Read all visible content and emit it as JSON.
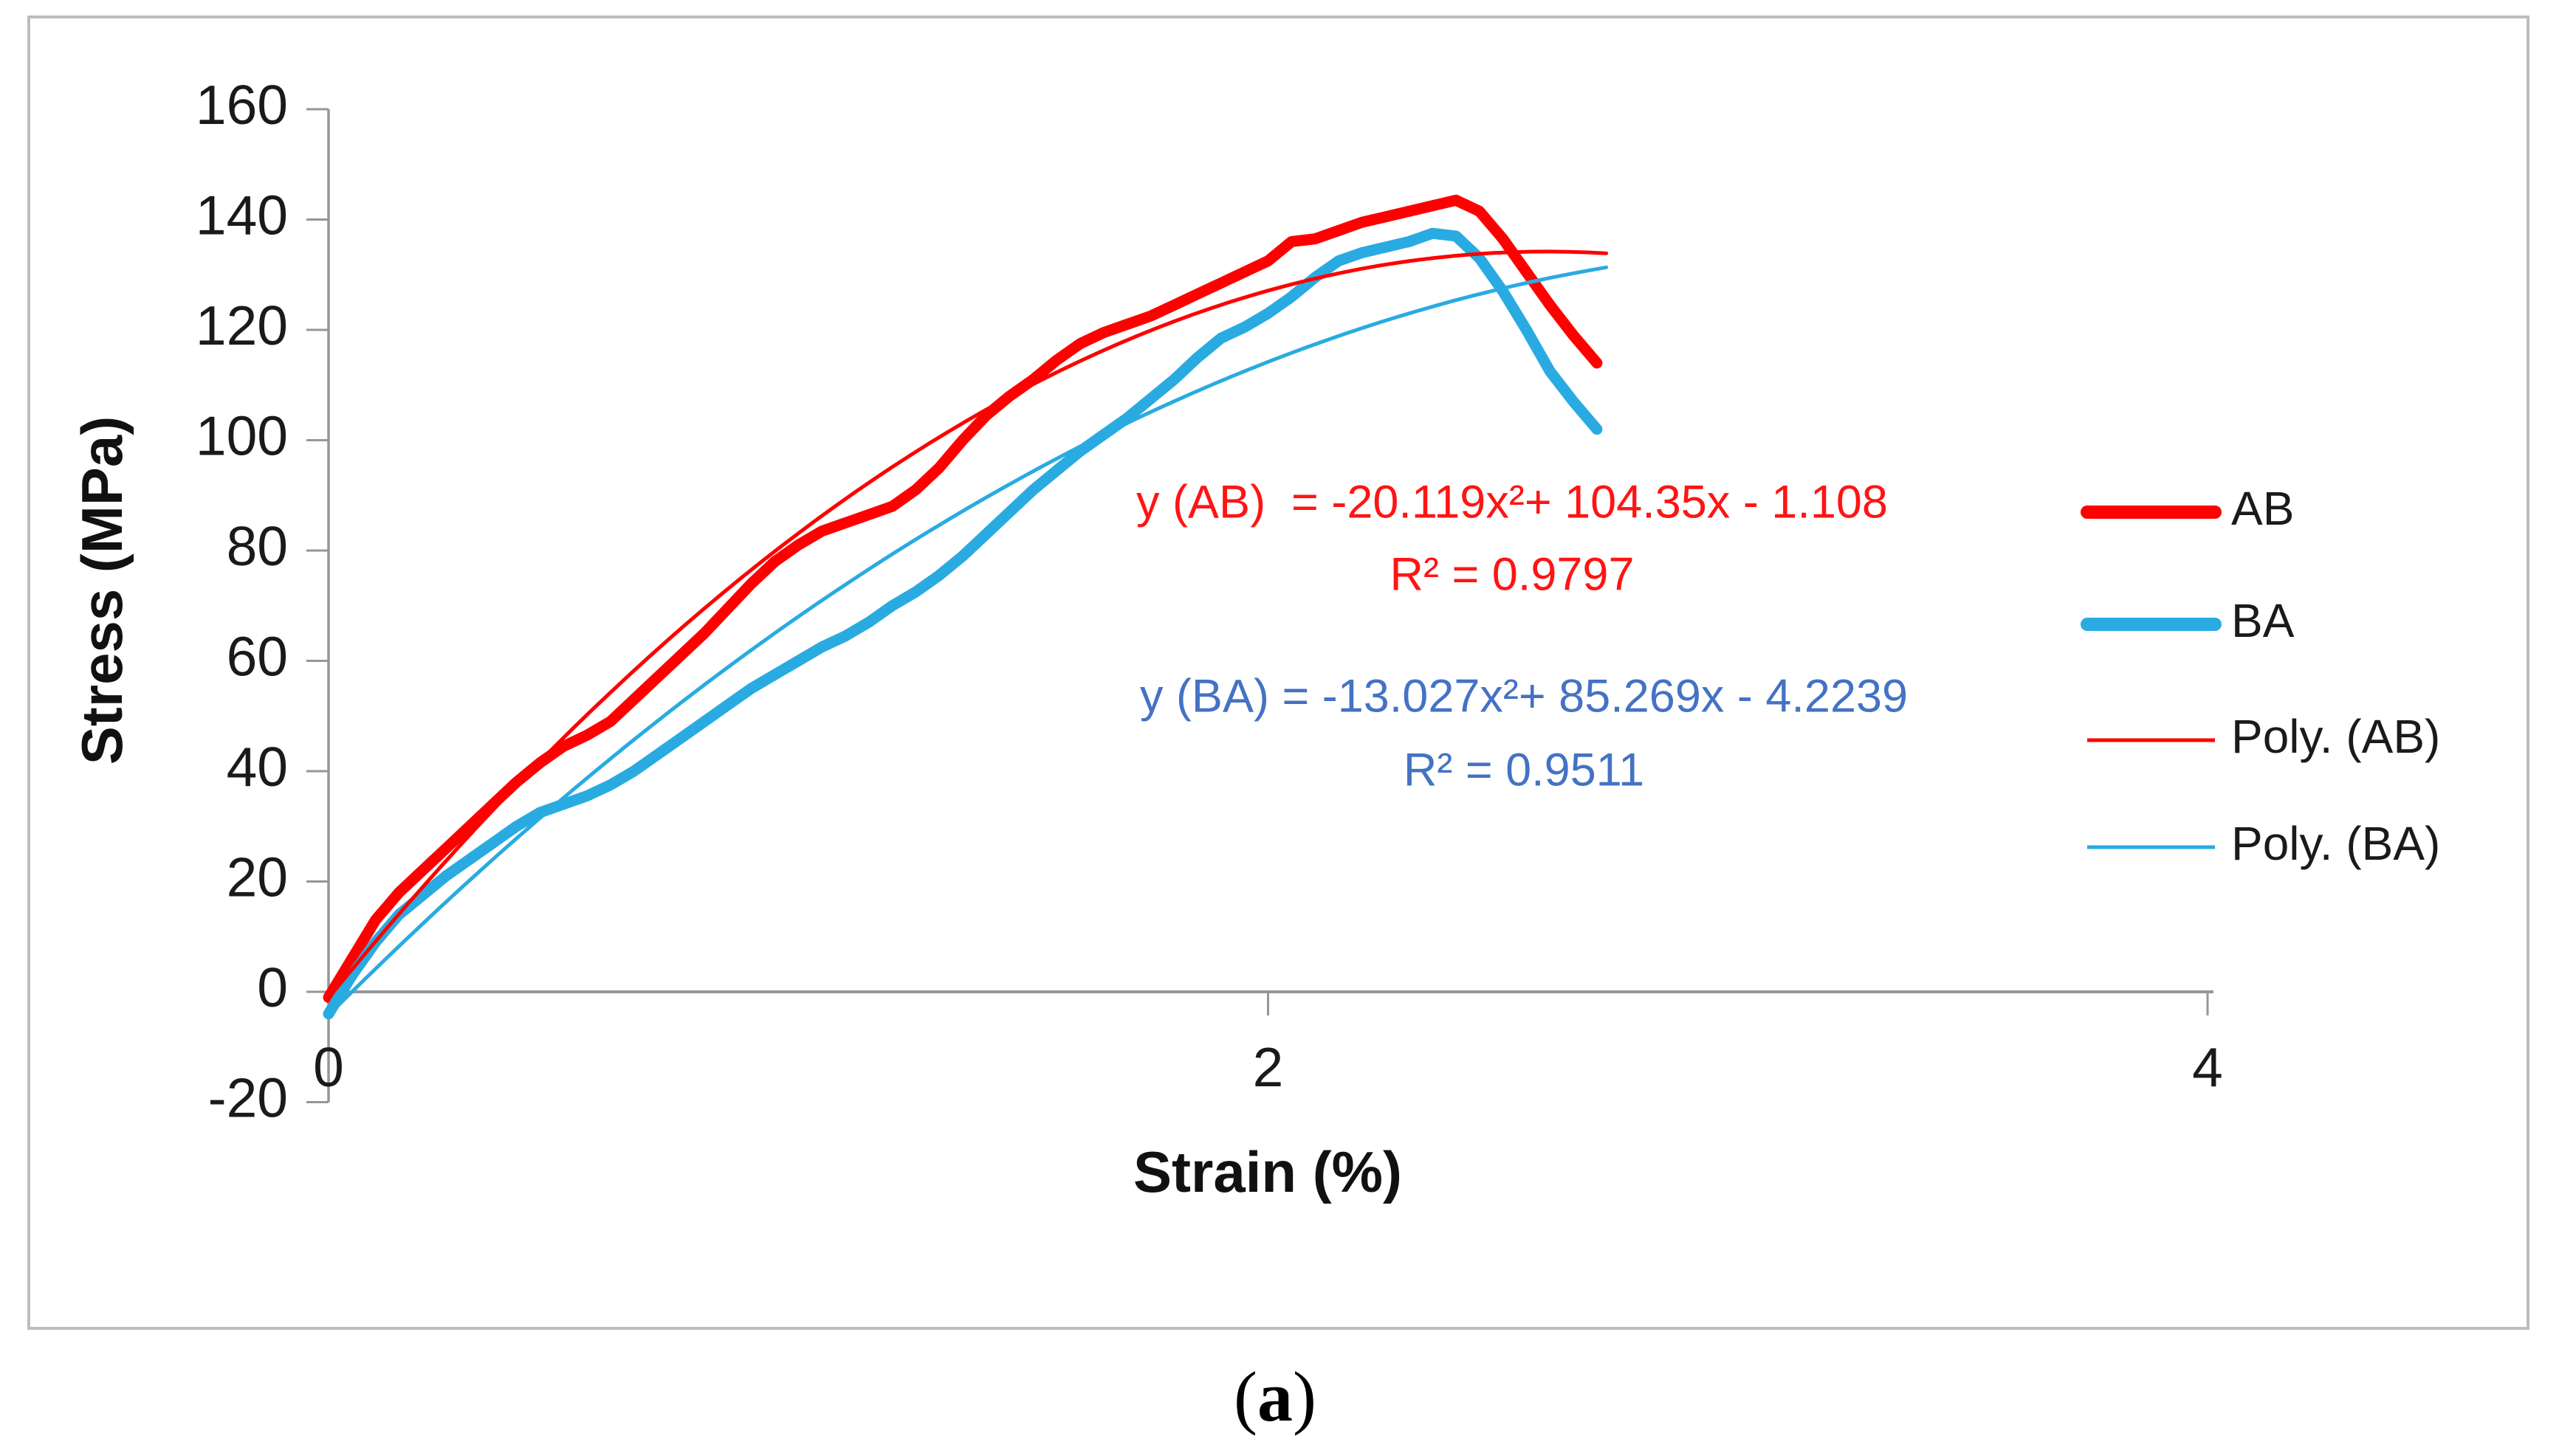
{
  "figure": {
    "caption": {
      "open": "(",
      "letter": "a",
      "close": ")"
    }
  },
  "chart_data": {
    "type": "line",
    "title": "",
    "xlabel": "Strain (%)",
    "ylabel": "Stress (MPa)",
    "xlim": [
      0,
      4
    ],
    "ylim": [
      -20,
      160
    ],
    "x_ticks": [
      0,
      2,
      4
    ],
    "y_ticks": [
      160,
      140,
      120,
      100,
      80,
      60,
      40,
      20,
      0,
      -20
    ],
    "grid": false,
    "legend_position": "right",
    "style": {
      "axis_color": "#969696",
      "tick_text_color": "#1a1a1a",
      "border_color": "#bdbdbd",
      "background": "#ffffff",
      "ab_color": "#ff0000",
      "ba_color": "#29abe2",
      "equation_ab_color": "#ff1414",
      "equation_ba_color": "#4472c4"
    },
    "series": [
      {
        "name": "AB",
        "role": "data",
        "color": "#ff0000",
        "width": 15,
        "points": [
          [
            0,
            -1
          ],
          [
            0.05,
            6
          ],
          [
            0.1,
            13
          ],
          [
            0.15,
            18
          ],
          [
            0.2,
            22
          ],
          [
            0.25,
            26
          ],
          [
            0.3,
            30
          ],
          [
            0.35,
            34
          ],
          [
            0.4,
            38
          ],
          [
            0.45,
            41.5
          ],
          [
            0.5,
            44.5
          ],
          [
            0.55,
            46.5
          ],
          [
            0.6,
            49
          ],
          [
            0.65,
            53
          ],
          [
            0.7,
            57
          ],
          [
            0.75,
            61
          ],
          [
            0.8,
            65
          ],
          [
            0.85,
            69.5
          ],
          [
            0.9,
            74
          ],
          [
            0.95,
            78
          ],
          [
            1,
            81
          ],
          [
            1.05,
            83.5
          ],
          [
            1.1,
            85
          ],
          [
            1.15,
            86.5
          ],
          [
            1.2,
            88
          ],
          [
            1.25,
            91
          ],
          [
            1.3,
            95
          ],
          [
            1.35,
            100
          ],
          [
            1.4,
            104.5
          ],
          [
            1.45,
            108
          ],
          [
            1.5,
            111
          ],
          [
            1.55,
            114.5
          ],
          [
            1.6,
            117.5
          ],
          [
            1.65,
            119.5
          ],
          [
            1.7,
            121
          ],
          [
            1.75,
            122.5
          ],
          [
            1.8,
            124.5
          ],
          [
            1.85,
            126.5
          ],
          [
            1.9,
            128.5
          ],
          [
            1.95,
            130.5
          ],
          [
            2,
            132.5
          ],
          [
            2.05,
            136
          ],
          [
            2.1,
            136.5
          ],
          [
            2.15,
            138
          ],
          [
            2.2,
            139.5
          ],
          [
            2.25,
            140.5
          ],
          [
            2.3,
            141.5
          ],
          [
            2.35,
            142.5
          ],
          [
            2.4,
            143.5
          ],
          [
            2.45,
            141.5
          ],
          [
            2.5,
            136.5
          ],
          [
            2.55,
            130.5
          ],
          [
            2.6,
            124.5
          ],
          [
            2.65,
            119
          ],
          [
            2.7,
            114
          ]
        ]
      },
      {
        "name": "BA",
        "role": "data",
        "color": "#29abe2",
        "width": 15,
        "points": [
          [
            0,
            -4
          ],
          [
            0.05,
            3
          ],
          [
            0.1,
            9
          ],
          [
            0.15,
            14
          ],
          [
            0.2,
            17.5
          ],
          [
            0.25,
            21
          ],
          [
            0.3,
            24
          ],
          [
            0.35,
            27
          ],
          [
            0.4,
            30
          ],
          [
            0.45,
            32.5
          ],
          [
            0.5,
            34
          ],
          [
            0.55,
            35.5
          ],
          [
            0.6,
            37.5
          ],
          [
            0.65,
            40
          ],
          [
            0.7,
            43
          ],
          [
            0.75,
            46
          ],
          [
            0.8,
            49
          ],
          [
            0.85,
            52
          ],
          [
            0.9,
            55
          ],
          [
            0.95,
            57.5
          ],
          [
            1,
            60
          ],
          [
            1.05,
            62.5
          ],
          [
            1.1,
            64.5
          ],
          [
            1.15,
            67
          ],
          [
            1.2,
            70
          ],
          [
            1.25,
            72.5
          ],
          [
            1.3,
            75.5
          ],
          [
            1.35,
            79
          ],
          [
            1.4,
            83
          ],
          [
            1.45,
            87
          ],
          [
            1.5,
            91
          ],
          [
            1.55,
            94.5
          ],
          [
            1.6,
            98
          ],
          [
            1.65,
            101
          ],
          [
            1.7,
            104
          ],
          [
            1.75,
            107.5
          ],
          [
            1.8,
            111
          ],
          [
            1.85,
            115
          ],
          [
            1.9,
            118.5
          ],
          [
            1.95,
            120.5
          ],
          [
            2,
            123
          ],
          [
            2.05,
            126
          ],
          [
            2.1,
            129.5
          ],
          [
            2.15,
            132.5
          ],
          [
            2.2,
            134
          ],
          [
            2.25,
            135
          ],
          [
            2.3,
            136
          ],
          [
            2.35,
            137.5
          ],
          [
            2.4,
            137
          ],
          [
            2.45,
            133
          ],
          [
            2.5,
            127
          ],
          [
            2.55,
            120
          ],
          [
            2.6,
            112.5
          ],
          [
            2.65,
            107
          ],
          [
            2.7,
            102
          ]
        ]
      },
      {
        "name": "Poly. (AB)",
        "role": "fit",
        "color": "#ff0000",
        "width": 5,
        "equation": {
          "a": -20.119,
          "b": 104.35,
          "c": -1.108
        },
        "x_range": [
          0,
          2.72
        ]
      },
      {
        "name": "Poly. (BA)",
        "role": "fit",
        "color": "#29abe2",
        "width": 5,
        "equation": {
          "a": -13.027,
          "b": 85.269,
          "c": -4.2239
        },
        "x_range": [
          0,
          2.72
        ]
      }
    ],
    "annotations": [
      {
        "id": "ab_equation",
        "text": "y (AB)  = -20.119x²+ 104.35x - 1.108",
        "color": "#ff1414"
      },
      {
        "id": "ab_r2",
        "text": "R² = 0.9797",
        "color": "#ff1414"
      },
      {
        "id": "ba_equation",
        "text": "y (BA) = -13.027x²+ 85.269x - 4.2239",
        "color": "#4472c4"
      },
      {
        "id": "ba_r2",
        "text": "R² = 0.9511",
        "color": "#4472c4"
      }
    ],
    "legend": {
      "entries": [
        {
          "label": "AB",
          "color": "#ff0000",
          "thickness": 18
        },
        {
          "label": "BA",
          "color": "#29abe2",
          "thickness": 18
        },
        {
          "label": "Poly. (AB)",
          "color": "#ff0000",
          "thickness": 5
        },
        {
          "label": "Poly. (BA)",
          "color": "#29abe2",
          "thickness": 5
        }
      ]
    }
  }
}
